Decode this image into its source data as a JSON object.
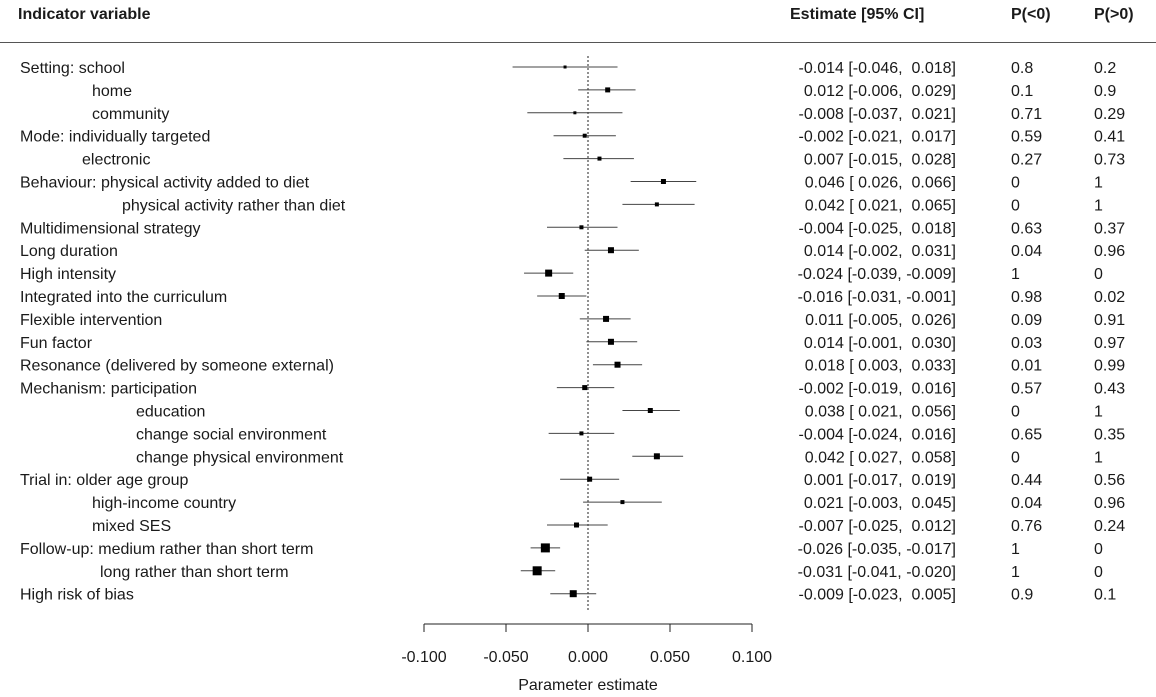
{
  "headers": {
    "indicator": "Indicator variable",
    "estimate": "Estimate [95% CI]",
    "p_lt0": "P(<0)",
    "p_gt0": "P(>0)"
  },
  "colors": {
    "text": "#1a1a1a",
    "ci_line": "#444444",
    "marker": "#000000",
    "axis": "#222222"
  },
  "chart_data": {
    "type": "forest",
    "xlabel": "Parameter estimate",
    "xlim": [
      -0.1,
      0.1
    ],
    "xticks": [
      "-0.100",
      "-0.050",
      "0.000",
      "0.050",
      "0.100"
    ],
    "reference_line": 0,
    "rows": [
      {
        "label": "Setting: school",
        "indent": 0,
        "est": -0.014,
        "lo": -0.046,
        "hi": 0.018,
        "est_text": "-0.014 [-0.046,  0.018]",
        "p_lt0": "0.8",
        "p_gt0": "0.2",
        "size": 3
      },
      {
        "label": "home",
        "indent": 1,
        "est": 0.012,
        "lo": -0.006,
        "hi": 0.029,
        "est_text": "0.012 [-0.006,  0.029]",
        "p_lt0": "0.1",
        "p_gt0": "0.9",
        "size": 5
      },
      {
        "label": "community",
        "indent": 1,
        "est": -0.008,
        "lo": -0.037,
        "hi": 0.021,
        "est_text": "-0.008 [-0.037,  0.021]",
        "p_lt0": "0.71",
        "p_gt0": "0.29",
        "size": 3
      },
      {
        "label": "Mode: individually targeted",
        "indent": 0,
        "est": -0.002,
        "lo": -0.021,
        "hi": 0.017,
        "est_text": "-0.002 [-0.021,  0.017]",
        "p_lt0": "0.59",
        "p_gt0": "0.41",
        "size": 4
      },
      {
        "label": "electronic",
        "indent": 2,
        "est": 0.007,
        "lo": -0.015,
        "hi": 0.028,
        "est_text": "0.007 [-0.015,  0.028]",
        "p_lt0": "0.27",
        "p_gt0": "0.73",
        "size": 4
      },
      {
        "label": "Behaviour: physical activity added to diet",
        "indent": 0,
        "est": 0.046,
        "lo": 0.026,
        "hi": 0.066,
        "est_text": "0.046 [ 0.026,  0.066]",
        "p_lt0": "0",
        "p_gt0": "1",
        "size": 5
      },
      {
        "label": "physical activity rather than diet",
        "indent": 3,
        "est": 0.042,
        "lo": 0.021,
        "hi": 0.065,
        "est_text": "0.042 [ 0.021,  0.065]",
        "p_lt0": "0",
        "p_gt0": "1",
        "size": 4
      },
      {
        "label": "Multidimensional strategy",
        "indent": 0,
        "est": -0.004,
        "lo": -0.025,
        "hi": 0.018,
        "est_text": "-0.004 [-0.025,  0.018]",
        "p_lt0": "0.63",
        "p_gt0": "0.37",
        "size": 4
      },
      {
        "label": "Long duration",
        "indent": 0,
        "est": 0.014,
        "lo": -0.002,
        "hi": 0.031,
        "est_text": "0.014 [-0.002,  0.031]",
        "p_lt0": "0.04",
        "p_gt0": "0.96",
        "size": 6
      },
      {
        "label": "High intensity",
        "indent": 0,
        "est": -0.024,
        "lo": -0.039,
        "hi": -0.009,
        "est_text": "-0.024 [-0.039, -0.009]",
        "p_lt0": "1",
        "p_gt0": "0",
        "size": 7
      },
      {
        "label": "Integrated into the curriculum",
        "indent": 0,
        "est": -0.016,
        "lo": -0.031,
        "hi": -0.001,
        "est_text": "-0.016 [-0.031, -0.001]",
        "p_lt0": "0.98",
        "p_gt0": "0.02",
        "size": 6
      },
      {
        "label": "Flexible intervention",
        "indent": 0,
        "est": 0.011,
        "lo": -0.005,
        "hi": 0.026,
        "est_text": "0.011 [-0.005,  0.026]",
        "p_lt0": "0.09",
        "p_gt0": "0.91",
        "size": 6
      },
      {
        "label": "Fun factor",
        "indent": 0,
        "est": 0.014,
        "lo": -0.001,
        "hi": 0.03,
        "est_text": "0.014 [-0.001,  0.030]",
        "p_lt0": "0.03",
        "p_gt0": "0.97",
        "size": 6
      },
      {
        "label": "Resonance (delivered by someone external)",
        "indent": 0,
        "est": 0.018,
        "lo": 0.003,
        "hi": 0.033,
        "est_text": "0.018 [ 0.003,  0.033]",
        "p_lt0": "0.01",
        "p_gt0": "0.99",
        "size": 6
      },
      {
        "label": "Mechanism: participation",
        "indent": 0,
        "est": -0.002,
        "lo": -0.019,
        "hi": 0.016,
        "est_text": "-0.002 [-0.019,  0.016]",
        "p_lt0": "0.57",
        "p_gt0": "0.43",
        "size": 5
      },
      {
        "label": "education",
        "indent": 4,
        "est": 0.038,
        "lo": 0.021,
        "hi": 0.056,
        "est_text": "0.038 [ 0.021,  0.056]",
        "p_lt0": "0",
        "p_gt0": "1",
        "size": 5
      },
      {
        "label": "change social environment",
        "indent": 4,
        "est": -0.004,
        "lo": -0.024,
        "hi": 0.016,
        "est_text": "-0.004 [-0.024,  0.016]",
        "p_lt0": "0.65",
        "p_gt0": "0.35",
        "size": 4
      },
      {
        "label": "change physical environment",
        "indent": 4,
        "est": 0.042,
        "lo": 0.027,
        "hi": 0.058,
        "est_text": "0.042 [ 0.027,  0.058]",
        "p_lt0": "0",
        "p_gt0": "1",
        "size": 6
      },
      {
        "label": "Trial in: older age group",
        "indent": 0,
        "est": 0.001,
        "lo": -0.017,
        "hi": 0.019,
        "est_text": "0.001 [-0.017,  0.019]",
        "p_lt0": "0.44",
        "p_gt0": "0.56",
        "size": 5
      },
      {
        "label": "high-income country",
        "indent": 5,
        "est": 0.021,
        "lo": -0.003,
        "hi": 0.045,
        "est_text": "0.021 [-0.003,  0.045]",
        "p_lt0": "0.04",
        "p_gt0": "0.96",
        "size": 4
      },
      {
        "label": "mixed SES",
        "indent": 5,
        "est": -0.007,
        "lo": -0.025,
        "hi": 0.012,
        "est_text": "-0.007 [-0.025,  0.012]",
        "p_lt0": "0.76",
        "p_gt0": "0.24",
        "size": 5
      },
      {
        "label": "Follow-up: medium rather than short term",
        "indent": 0,
        "est": -0.026,
        "lo": -0.035,
        "hi": -0.017,
        "est_text": "-0.026 [-0.035, -0.017]",
        "p_lt0": "1",
        "p_gt0": "0",
        "size": 9
      },
      {
        "label": "long rather than short term",
        "indent": 6,
        "est": -0.031,
        "lo": -0.041,
        "hi": -0.02,
        "est_text": "-0.031 [-0.041, -0.020]",
        "p_lt0": "1",
        "p_gt0": "0",
        "size": 9
      },
      {
        "label": "High risk of bias",
        "indent": 0,
        "est": -0.009,
        "lo": -0.023,
        "hi": 0.005,
        "est_text": "-0.009 [-0.023,  0.005]",
        "p_lt0": "0.9",
        "p_gt0": "0.1",
        "size": 7
      }
    ]
  }
}
